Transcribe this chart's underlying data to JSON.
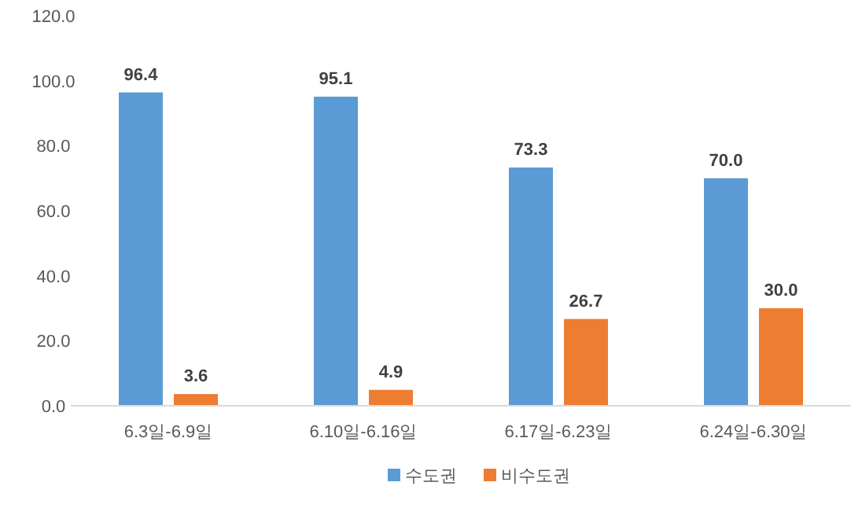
{
  "chart_data": {
    "type": "bar",
    "categories": [
      "6.3일-6.9일",
      "6.10일-6.16일",
      "6.17일-6.23일",
      "6.24일-6.30일"
    ],
    "series": [
      {
        "name": "수도권",
        "color": "#5b9bd5",
        "values": [
          96.4,
          95.1,
          73.3,
          70.0
        ],
        "value_labels": [
          "96.4",
          "95.1",
          "73.3",
          "70.0"
        ]
      },
      {
        "name": "비수도권",
        "color": "#ed7d31",
        "values": [
          3.6,
          4.9,
          26.7,
          30.0
        ],
        "value_labels": [
          "3.6",
          "4.9",
          "26.7",
          "30.0"
        ]
      }
    ],
    "ylim": [
      0,
      120
    ],
    "yticks": [
      {
        "value": 0,
        "label": "0.0"
      },
      {
        "value": 20,
        "label": "20.0"
      },
      {
        "value": 40,
        "label": "40.0"
      },
      {
        "value": 60,
        "label": "60.0"
      },
      {
        "value": 80,
        "label": "80.0"
      },
      {
        "value": 100,
        "label": "100.0"
      },
      {
        "value": 120,
        "label": "120.0"
      }
    ],
    "legend": "bottom",
    "grid": false
  }
}
